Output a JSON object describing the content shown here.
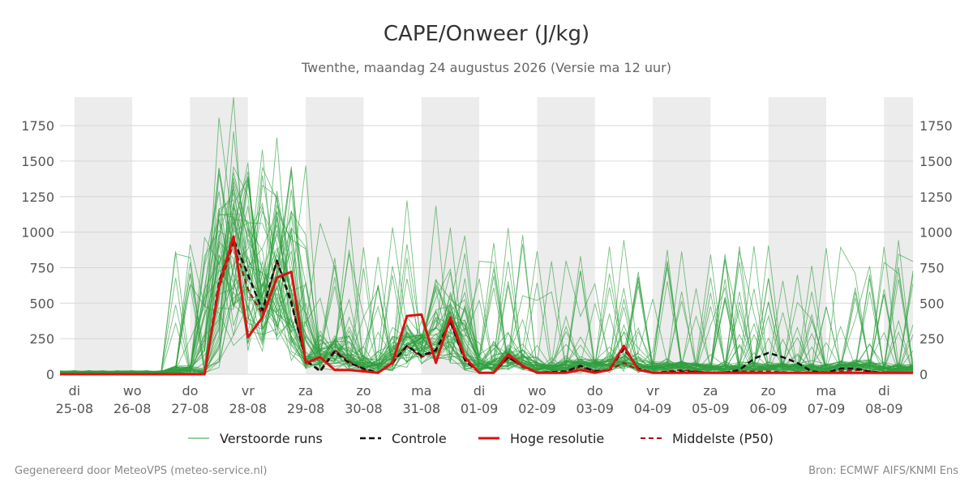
{
  "chart_data": {
    "type": "line",
    "title": "CAPE/Onweer (J/kg)",
    "subtitle": "Twenthe, maandag 24 augustus 2026 (Versie ma 12 uur)",
    "unit": "J/kg",
    "ylim": [
      0,
      1950
    ],
    "yticks": [
      0,
      250,
      500,
      750,
      1000,
      1250,
      1500,
      1750
    ],
    "xlim": [
      -0.25,
      14.5
    ],
    "day_ticks": [
      {
        "pos": 0,
        "day": "di",
        "date": "25-08"
      },
      {
        "pos": 1,
        "day": "wo",
        "date": "26-08"
      },
      {
        "pos": 2,
        "day": "do",
        "date": "27-08"
      },
      {
        "pos": 3,
        "day": "vr",
        "date": "28-08"
      },
      {
        "pos": 4,
        "day": "za",
        "date": "29-08"
      },
      {
        "pos": 5,
        "day": "zo",
        "date": "30-08"
      },
      {
        "pos": 6,
        "day": "ma",
        "date": "31-08"
      },
      {
        "pos": 7,
        "day": "di",
        "date": "01-09"
      },
      {
        "pos": 8,
        "day": "wo",
        "date": "02-09"
      },
      {
        "pos": 9,
        "day": "do",
        "date": "03-09"
      },
      {
        "pos": 10,
        "day": "vr",
        "date": "04-09"
      },
      {
        "pos": 11,
        "day": "za",
        "date": "05-09"
      },
      {
        "pos": 12,
        "day": "zo",
        "date": "06-09"
      },
      {
        "pos": 13,
        "day": "ma",
        "date": "07-09"
      },
      {
        "pos": 14,
        "day": "di",
        "date": "08-09"
      }
    ],
    "night_shading": [
      [
        0,
        1
      ],
      [
        2,
        3
      ],
      [
        4,
        5
      ],
      [
        6,
        7
      ],
      [
        8,
        9
      ],
      [
        10,
        11
      ],
      [
        12,
        13
      ],
      [
        14,
        14.5
      ]
    ],
    "grid": true,
    "legend_position": "bottom",
    "series": [
      {
        "name": "Controle",
        "color": "#111111",
        "dash": "dashed",
        "points": [
          [
            -0.25,
            0
          ],
          [
            0,
            0
          ],
          [
            0.5,
            0
          ],
          [
            1,
            0
          ],
          [
            1.5,
            0
          ],
          [
            2,
            0
          ],
          [
            2.25,
            0
          ],
          [
            2.5,
            650
          ],
          [
            2.75,
            950
          ],
          [
            3,
            700
          ],
          [
            3.25,
            450
          ],
          [
            3.5,
            800
          ],
          [
            3.75,
            500
          ],
          [
            4,
            100
          ],
          [
            4.25,
            20
          ],
          [
            4.5,
            160
          ],
          [
            4.75,
            80
          ],
          [
            5,
            40
          ],
          [
            5.25,
            10
          ],
          [
            5.5,
            80
          ],
          [
            5.75,
            200
          ],
          [
            6,
            130
          ],
          [
            6.25,
            170
          ],
          [
            6.5,
            370
          ],
          [
            6.75,
            100
          ],
          [
            7,
            10
          ],
          [
            7.25,
            10
          ],
          [
            7.5,
            120
          ],
          [
            7.75,
            60
          ],
          [
            8,
            10
          ],
          [
            8.5,
            20
          ],
          [
            8.75,
            60
          ],
          [
            9,
            20
          ],
          [
            9.25,
            30
          ],
          [
            9.5,
            180
          ],
          [
            9.75,
            40
          ],
          [
            10,
            10
          ],
          [
            10.5,
            20
          ],
          [
            11,
            10
          ],
          [
            11.25,
            10
          ],
          [
            11.5,
            30
          ],
          [
            11.75,
            110
          ],
          [
            12,
            150
          ],
          [
            12.25,
            120
          ],
          [
            12.5,
            80
          ],
          [
            12.75,
            20
          ],
          [
            13,
            10
          ],
          [
            13.25,
            40
          ],
          [
            13.5,
            40
          ],
          [
            13.75,
            20
          ],
          [
            14,
            10
          ],
          [
            14.5,
            10
          ]
        ]
      },
      {
        "name": "Hoge resolutie",
        "color": "#dd1111",
        "dash": "solid",
        "points": [
          [
            -0.25,
            0
          ],
          [
            0,
            0
          ],
          [
            0.5,
            0
          ],
          [
            1,
            0
          ],
          [
            1.5,
            0
          ],
          [
            2,
            0
          ],
          [
            2.25,
            0
          ],
          [
            2.5,
            620
          ],
          [
            2.75,
            970
          ],
          [
            3,
            260
          ],
          [
            3.25,
            400
          ],
          [
            3.5,
            680
          ],
          [
            3.75,
            720
          ],
          [
            4,
            80
          ],
          [
            4.25,
            120
          ],
          [
            4.5,
            30
          ],
          [
            4.75,
            30
          ],
          [
            5,
            20
          ],
          [
            5.25,
            10
          ],
          [
            5.5,
            80
          ],
          [
            5.75,
            410
          ],
          [
            6,
            420
          ],
          [
            6.25,
            80
          ],
          [
            6.5,
            400
          ],
          [
            6.75,
            120
          ],
          [
            7,
            10
          ],
          [
            7.25,
            10
          ],
          [
            7.5,
            140
          ],
          [
            7.75,
            60
          ],
          [
            8,
            10
          ],
          [
            8.5,
            10
          ],
          [
            8.75,
            30
          ],
          [
            9,
            10
          ],
          [
            9.25,
            30
          ],
          [
            9.5,
            200
          ],
          [
            9.75,
            30
          ],
          [
            10,
            10
          ],
          [
            10.5,
            10
          ],
          [
            11,
            10
          ],
          [
            11.5,
            10
          ],
          [
            12,
            10
          ],
          [
            12.5,
            10
          ],
          [
            13,
            10
          ],
          [
            13.5,
            10
          ],
          [
            14,
            10
          ],
          [
            14.5,
            10
          ]
        ]
      },
      {
        "name": "Middelste (P50)",
        "color": "#aa1111",
        "dash": "dashed",
        "points": [
          [
            -0.25,
            0
          ],
          [
            0,
            0
          ],
          [
            0.5,
            0
          ],
          [
            1,
            0
          ],
          [
            1.5,
            0
          ],
          [
            2,
            0
          ],
          [
            2.25,
            0
          ],
          [
            2.5,
            600
          ],
          [
            2.75,
            920
          ],
          [
            3,
            600
          ],
          [
            3.25,
            420
          ],
          [
            3.5,
            800
          ],
          [
            3.75,
            520
          ],
          [
            4,
            90
          ],
          [
            4.25,
            30
          ],
          [
            4.5,
            170
          ],
          [
            4.75,
            90
          ],
          [
            5,
            30
          ],
          [
            5.25,
            10
          ],
          [
            5.5,
            90
          ],
          [
            5.75,
            200
          ],
          [
            6,
            120
          ],
          [
            6.25,
            160
          ],
          [
            6.5,
            370
          ],
          [
            6.75,
            100
          ],
          [
            7,
            10
          ],
          [
            7.25,
            10
          ],
          [
            7.5,
            120
          ],
          [
            7.75,
            50
          ],
          [
            8,
            10
          ],
          [
            8.5,
            20
          ],
          [
            8.75,
            50
          ],
          [
            9,
            20
          ],
          [
            9.25,
            30
          ],
          [
            9.5,
            80
          ],
          [
            9.75,
            30
          ],
          [
            10,
            10
          ],
          [
            10.5,
            30
          ],
          [
            11,
            10
          ],
          [
            11.5,
            20
          ],
          [
            12,
            20
          ],
          [
            12.5,
            10
          ],
          [
            13,
            10
          ],
          [
            13.5,
            30
          ],
          [
            13.75,
            20
          ],
          [
            14,
            10
          ],
          [
            14.5,
            10
          ]
        ]
      }
    ],
    "ensemble": {
      "name": "Verstoorde runs",
      "color": "#2e9e3e",
      "member_count": 50
    }
  },
  "legend": {
    "ensemble_label": "Verstoorde runs",
    "control_label": "Controle",
    "hires_label": "Hoge resolutie",
    "median_label": "Middelste (P50)"
  },
  "footer": {
    "left": "Gegenereerd door MeteoVPS (meteo-service.nl)",
    "right": "Bron: ECMWF AIFS/KNMI Ens"
  }
}
